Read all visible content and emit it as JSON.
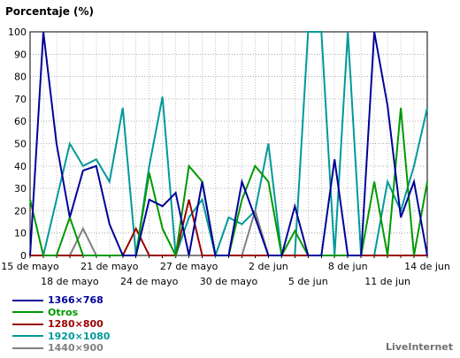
{
  "chart_data": {
    "type": "line",
    "title": "Porcentaje (%)",
    "ylim": [
      0,
      100
    ],
    "yticks": [
      0,
      10,
      20,
      30,
      40,
      50,
      60,
      70,
      80,
      90,
      100
    ],
    "grid": true,
    "legend_position": "bottom-left",
    "x_tick_labels": [
      {
        "label": "15 de mayo",
        "index": 0,
        "row": 1
      },
      {
        "label": "18 de mayo",
        "index": 3,
        "row": 2
      },
      {
        "label": "21 de mayo",
        "index": 6,
        "row": 1
      },
      {
        "label": "24 de mayo",
        "index": 9,
        "row": 2
      },
      {
        "label": "27 de mayo",
        "index": 12,
        "row": 1
      },
      {
        "label": "30 de mayo",
        "index": 15,
        "row": 2
      },
      {
        "label": "2 de jun",
        "index": 18,
        "row": 1
      },
      {
        "label": "5 de jun",
        "index": 21,
        "row": 2
      },
      {
        "label": "8 de jun",
        "index": 24,
        "row": 1
      },
      {
        "label": "11 de jun",
        "index": 27,
        "row": 2
      },
      {
        "label": "14 de jun",
        "index": 30,
        "row": 1
      }
    ],
    "n_points": 31,
    "series": [
      {
        "name": "1920×1080",
        "color": "#009999",
        "values": [
          0,
          0,
          25,
          50,
          40,
          43,
          33,
          66,
          0,
          40,
          71,
          0,
          17,
          25,
          0,
          17,
          14,
          20,
          50,
          0,
          0,
          100,
          100,
          0,
          100,
          0,
          0,
          33,
          20,
          40,
          66
        ]
      },
      {
        "name": "1440×900",
        "color": "#808080",
        "values": [
          0,
          0,
          0,
          0,
          12,
          0,
          0,
          0,
          0,
          0,
          0,
          0,
          0,
          0,
          0,
          0,
          0,
          20,
          0,
          0,
          0,
          0,
          0,
          0,
          0,
          0,
          0,
          0,
          0,
          0,
          0
        ]
      },
      {
        "name": "1280×800",
        "color": "#990000",
        "values": [
          0,
          0,
          0,
          0,
          0,
          0,
          0,
          0,
          12,
          0,
          0,
          0,
          25,
          0,
          0,
          0,
          0,
          0,
          0,
          0,
          0,
          0,
          0,
          0,
          0,
          0,
          0,
          0,
          0,
          0,
          0
        ]
      },
      {
        "name": "Otros",
        "color": "#009900",
        "values": [
          25,
          0,
          0,
          17,
          0,
          0,
          0,
          0,
          0,
          37,
          12,
          0,
          40,
          33,
          0,
          0,
          25,
          40,
          33,
          0,
          11,
          0,
          0,
          0,
          0,
          0,
          33,
          0,
          66,
          0,
          33
        ]
      },
      {
        "name": "1366×768",
        "color": "#000099",
        "values": [
          0,
          100,
          50,
          17,
          38,
          40,
          14,
          0,
          0,
          25,
          22,
          28,
          0,
          33,
          0,
          0,
          33,
          17,
          0,
          0,
          22,
          0,
          0,
          43,
          0,
          0,
          100,
          67,
          17,
          33,
          0
        ]
      }
    ],
    "legend_order": [
      "1366×768",
      "Otros",
      "1280×800",
      "1920×1080",
      "1440×900"
    ]
  },
  "legend": [
    {
      "label": "1366×768",
      "color": "#000099"
    },
    {
      "label": "Otros",
      "color": "#009900"
    },
    {
      "label": "1280×800",
      "color": "#990000"
    },
    {
      "label": "1920×1080",
      "color": "#009999"
    },
    {
      "label": "1440×900",
      "color": "#808080"
    }
  ],
  "footer": {
    "brand": "LiveInternet"
  }
}
